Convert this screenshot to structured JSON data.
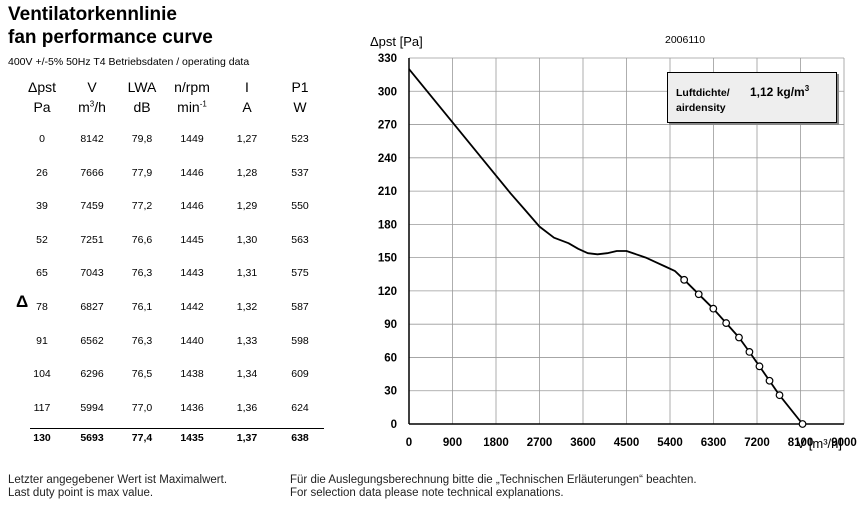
{
  "title_de": "Ventilatorkennlinie",
  "title_en": "fan performance curve",
  "subtitle": "400V +/-5% 50Hz T4 Betriebsdaten / operating data",
  "delta_symbol": "Δ",
  "code": "2006110",
  "table": {
    "headers": [
      {
        "name": "Δpst",
        "unit": "Pa",
        "unit_sup": ""
      },
      {
        "name": "V",
        "unit": "m",
        "unit_sup": "3",
        "unit_tail": "/h"
      },
      {
        "name": "LWA",
        "unit": "dB",
        "unit_sup": ""
      },
      {
        "name": "n/rpm",
        "unit": "min",
        "unit_sup": "-1"
      },
      {
        "name": "I",
        "unit": "A",
        "unit_sup": ""
      },
      {
        "name": "P1",
        "unit": "W",
        "unit_sup": ""
      }
    ],
    "rows": [
      [
        "0",
        "8142",
        "79,8",
        "1449",
        "1,27",
        "523"
      ],
      [
        "26",
        "7666",
        "77,9",
        "1446",
        "1,28",
        "537"
      ],
      [
        "39",
        "7459",
        "77,2",
        "1446",
        "1,29",
        "550"
      ],
      [
        "52",
        "7251",
        "76,6",
        "1445",
        "1,30",
        "563"
      ],
      [
        "65",
        "7043",
        "76,3",
        "1443",
        "1,31",
        "575"
      ],
      [
        "78",
        "6827",
        "76,1",
        "1442",
        "1,32",
        "587"
      ],
      [
        "91",
        "6562",
        "76,3",
        "1440",
        "1,33",
        "598"
      ],
      [
        "104",
        "6296",
        "76,5",
        "1438",
        "1,34",
        "609"
      ],
      [
        "117",
        "5994",
        "77,0",
        "1436",
        "1,36",
        "624"
      ],
      [
        "130",
        "5693",
        "77,4",
        "1435",
        "1,37",
        "638"
      ]
    ]
  },
  "density_box": {
    "line1_label": "Luftdichte/",
    "line2_label": "airdensity",
    "value": "1,12 kg/m",
    "value_sup": "3"
  },
  "footnotes": {
    "left_de": "Letzter angegebener Wert ist Maximalwert.",
    "left_en": "Last duty point is max value.",
    "right_de": "Für die Auslegungsberechnung bitte die „Technischen Erläuterungen“ beachten.",
    "right_en": "For selection data please note technical explanations."
  },
  "chart_data": {
    "type": "line",
    "ylabel": "Δpst [Pa]",
    "xlabel": "V [m³/h]",
    "xlim": [
      0,
      9000
    ],
    "ylim": [
      0,
      330
    ],
    "xticks": [
      0,
      900,
      1800,
      2700,
      3600,
      4500,
      5400,
      6300,
      7200,
      8100,
      9000
    ],
    "yticks": [
      0,
      30,
      60,
      90,
      120,
      150,
      180,
      210,
      240,
      270,
      300,
      330
    ],
    "grid": true,
    "curve": {
      "x": [
        0,
        300,
        600,
        900,
        1200,
        1500,
        1800,
        2100,
        2400,
        2700,
        3000,
        3300,
        3500,
        3700,
        3900,
        4100,
        4300,
        4500,
        4700,
        4900,
        5100,
        5300,
        5500,
        5693,
        5994,
        6296,
        6562,
        6827,
        7043,
        7251,
        7459,
        7666,
        8142
      ],
      "y": [
        320,
        304,
        288,
        272,
        256,
        240,
        224,
        208,
        193,
        178,
        168,
        163,
        158,
        154,
        153,
        154,
        156,
        156,
        153,
        150,
        146,
        142,
        138,
        130,
        117,
        104,
        91,
        78,
        65,
        52,
        39,
        26,
        0
      ]
    },
    "duty_points": {
      "x": [
        5693,
        5994,
        6296,
        6562,
        6827,
        7043,
        7251,
        7459,
        7666,
        8142
      ],
      "y": [
        130,
        117,
        104,
        91,
        78,
        65,
        52,
        39,
        26,
        0
      ]
    }
  }
}
